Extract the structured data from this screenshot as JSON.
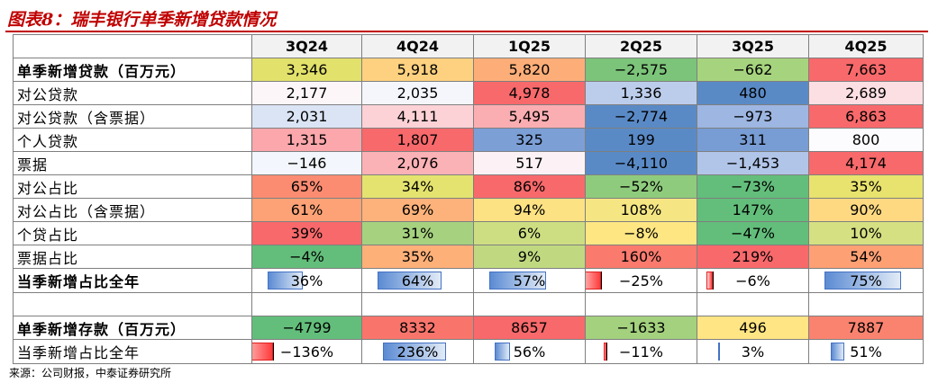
{
  "title": "图表8：瑞丰银行单季新增贷款情况",
  "columns": [
    "3Q24",
    "4Q24",
    "1Q25",
    "2Q25",
    "3Q25",
    "4Q25"
  ],
  "rows": [
    {
      "label": "单季新增贷款（百万元）",
      "bold": true,
      "values": [
        "3,346",
        "5,918",
        "5,820",
        "−2,575",
        "−662",
        "7,663"
      ],
      "colors": [
        "#e2e16b",
        "#fdd17f",
        "#fdae78",
        "#7cc47a",
        "#a6d47e",
        "#f8696b"
      ]
    },
    {
      "label": "对公贷款",
      "bold": false,
      "values": [
        "2,177",
        "2,035",
        "4,978",
        "1,336",
        "480",
        "2,689"
      ],
      "colors": [
        "#fcf6f9",
        "#f4f6fc",
        "#f8696b",
        "#bccdec",
        "#5a8ac6",
        "#fcdfe3"
      ]
    },
    {
      "label": "对公贷款（含票据）",
      "bold": false,
      "values": [
        "2,031",
        "4,111",
        "5,495",
        "−2,774",
        "−973",
        "6,863"
      ],
      "colors": [
        "#dbe4f4",
        "#fcd2d6",
        "#fbaeb2",
        "#5a8ac6",
        "#9db6e2",
        "#f8696b"
      ]
    },
    {
      "label": "个人贷款",
      "bold": false,
      "values": [
        "1,315",
        "1,807",
        "325",
        "199",
        "311",
        "800"
      ],
      "colors": [
        "#fba7ab",
        "#f8696b",
        "#7c9fd6",
        "#5a8ac6",
        "#789cd4",
        "#fcfcff"
      ]
    },
    {
      "label": "票据",
      "bold": false,
      "values": [
        "−146",
        "2,076",
        "517",
        "−4,110",
        "−1,453",
        "4,174"
      ],
      "colors": [
        "#f3f6fc",
        "#fbb2b6",
        "#fcf2f5",
        "#5a8ac6",
        "#b1c5e8",
        "#f8696b"
      ]
    },
    {
      "label": "对公占比",
      "bold": false,
      "values": [
        "65%",
        "34%",
        "86%",
        "−52%",
        "−73%",
        "35%"
      ],
      "colors": [
        "#fb8c72",
        "#e4e36f",
        "#f8696b",
        "#8fcb7d",
        "#63be7b",
        "#e8e26e"
      ]
    },
    {
      "label": "对公占比（含票据）",
      "bold": false,
      "values": [
        "61%",
        "69%",
        "94%",
        "108%",
        "147%",
        "90%"
      ],
      "colors": [
        "#fca276",
        "#fcb27a",
        "#fde283",
        "#f5e683",
        "#63be7b",
        "#fed982"
      ]
    },
    {
      "label": "个贷占比",
      "bold": false,
      "values": [
        "39%",
        "31%",
        "6%",
        "−8%",
        "−47%",
        "10%"
      ],
      "colors": [
        "#f8696b",
        "#a6d27f",
        "#cdde82",
        "#fee683",
        "#63be7b",
        "#d5e082"
      ]
    },
    {
      "label": "票据占比",
      "bold": false,
      "values": [
        "−4%",
        "35%",
        "9%",
        "160%",
        "219%",
        "54%"
      ],
      "colors": [
        "#63be7b",
        "#feb079",
        "#c0d980",
        "#fa7a6e",
        "#f8696b",
        "#fda074"
      ]
    },
    {
      "label": "当季新增占比全年",
      "bold": true,
      "type": "bar",
      "values": [
        "36%",
        "64%",
        "57%",
        "−25%",
        "−6%",
        "75%"
      ],
      "numeric": [
        36,
        64,
        57,
        -25,
        -6,
        75
      ]
    },
    {
      "type": "blank"
    },
    {
      "label": "单季新增存款（百万元）",
      "bold": true,
      "values": [
        "−4799",
        "8332",
        "8657",
        "−1633",
        "496",
        "7887"
      ],
      "colors": [
        "#63be7b",
        "#f9756c",
        "#f8696b",
        "#a3d17e",
        "#ffe583",
        "#fa836f"
      ]
    },
    {
      "label": "当季新增占比全年",
      "bold": false,
      "type": "bar",
      "values": [
        "−136%",
        "236%",
        "56%",
        "−11%",
        "3%",
        "51%"
      ],
      "numeric": [
        -136,
        236,
        56,
        -11,
        3,
        51
      ]
    }
  ],
  "source": "来源：公司财报，中泰证券研究所"
}
